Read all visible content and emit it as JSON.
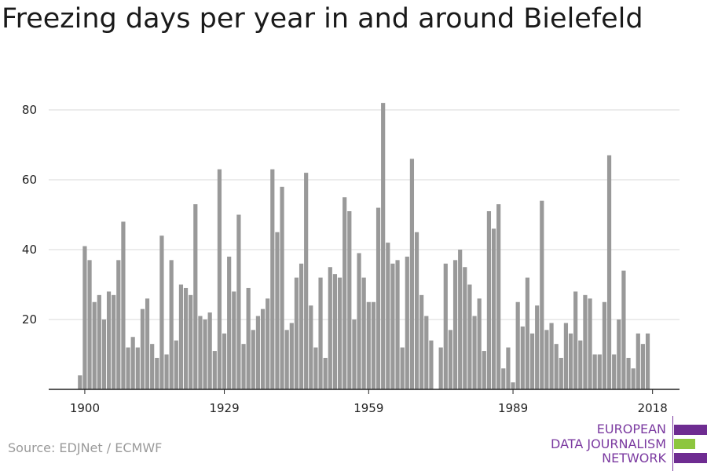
{
  "title": "Freezing days per year in and around Bielefeld",
  "source": "Source: EDJNet / ECMWF",
  "logo": {
    "line1": "EUROPEAN",
    "line2": "DATA JOURNALISM",
    "line3": "NETWORK",
    "colors": [
      "#6e2c91",
      "#8dc63f",
      "#6e2c91"
    ]
  },
  "chart_data": {
    "type": "bar",
    "title": "Freezing days per year in and around Bielefeld",
    "xlabel": "",
    "ylabel": "",
    "bar_color": "#999999",
    "grid": true,
    "ylim": [
      0,
      88
    ],
    "yticks": [
      20,
      40,
      60,
      80
    ],
    "xticks": [
      1900,
      1929,
      1959,
      1989,
      2018
    ],
    "x": [
      1899,
      1900,
      1901,
      1902,
      1903,
      1904,
      1905,
      1906,
      1907,
      1908,
      1909,
      1910,
      1911,
      1912,
      1913,
      1914,
      1915,
      1916,
      1917,
      1918,
      1919,
      1920,
      1921,
      1922,
      1923,
      1924,
      1925,
      1926,
      1927,
      1928,
      1929,
      1930,
      1931,
      1932,
      1933,
      1934,
      1935,
      1936,
      1937,
      1938,
      1939,
      1940,
      1941,
      1942,
      1943,
      1944,
      1945,
      1946,
      1947,
      1948,
      1949,
      1950,
      1951,
      1952,
      1953,
      1954,
      1955,
      1956,
      1957,
      1958,
      1959,
      1960,
      1961,
      1962,
      1963,
      1964,
      1965,
      1966,
      1967,
      1968,
      1969,
      1970,
      1971,
      1972,
      1973,
      1974,
      1975,
      1976,
      1977,
      1978,
      1979,
      1980,
      1981,
      1982,
      1983,
      1984,
      1985,
      1986,
      1987,
      1988,
      1989,
      1990,
      1991,
      1992,
      1993,
      1994,
      1995,
      1996,
      1997,
      1998,
      1999,
      2000,
      2001,
      2002,
      2003,
      2004,
      2005,
      2006,
      2007,
      2008,
      2009,
      2010,
      2011,
      2012,
      2013,
      2014,
      2015,
      2016,
      2017,
      2018
    ],
    "values": [
      4,
      41,
      37,
      25,
      27,
      20,
      28,
      27,
      37,
      48,
      12,
      15,
      12,
      23,
      26,
      13,
      9,
      44,
      10,
      37,
      14,
      30,
      29,
      27,
      53,
      21,
      20,
      22,
      11,
      63,
      16,
      38,
      28,
      50,
      13,
      29,
      17,
      21,
      23,
      26,
      63,
      45,
      58,
      17,
      19,
      32,
      36,
      62,
      24,
      12,
      32,
      9,
      35,
      33,
      32,
      55,
      51,
      20,
      39,
      32,
      25,
      25,
      52,
      82,
      42,
      36,
      37,
      12,
      38,
      66,
      45,
      27,
      21,
      14,
      0,
      12,
      36,
      17,
      37,
      40,
      35,
      30,
      21,
      26,
      11,
      51,
      46,
      53,
      6,
      12,
      2,
      25,
      18,
      32,
      16,
      24,
      54,
      17,
      19,
      13,
      9,
      19,
      16,
      28,
      14,
      27,
      26,
      10,
      10,
      25,
      67,
      10,
      20,
      34,
      9,
      6,
      16,
      13,
      16,
      0
    ]
  }
}
